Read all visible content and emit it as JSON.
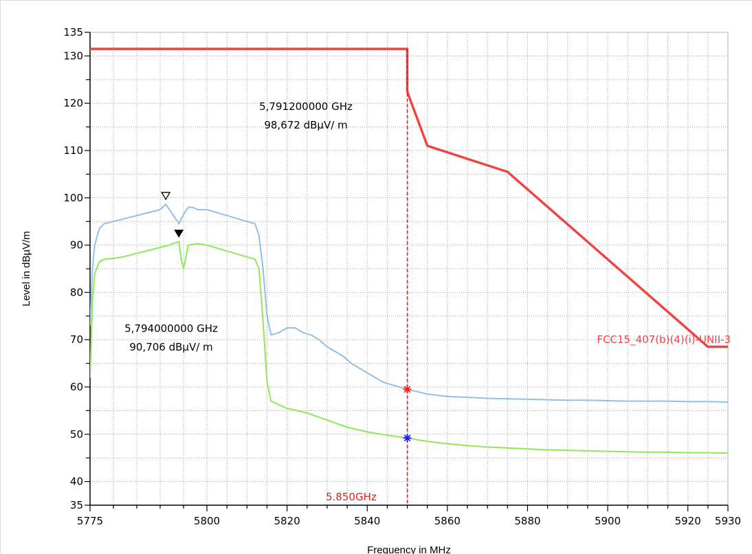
{
  "chart_data": {
    "type": "line",
    "xlabel": "Frequency in MHz",
    "ylabel": "Level in dBµV/m",
    "xlim": [
      5775,
      5930
    ],
    "ylim": [
      35,
      135
    ],
    "x_major_ticks": [
      5775,
      5800,
      5820,
      5840,
      5860,
      5880,
      5900,
      5920,
      5930
    ],
    "x_minor_ticks": [
      5780,
      5785,
      5790,
      5795,
      5805,
      5810,
      5815,
      5825,
      5830,
      5835,
      5845,
      5850,
      5855,
      5865,
      5870,
      5875,
      5885,
      5890,
      5895,
      5905,
      5910,
      5915,
      5925
    ],
    "y_labeled_ticks": [
      35,
      40,
      50,
      60,
      70,
      80,
      90,
      100,
      110,
      120,
      130,
      135
    ],
    "y_grid": [
      40,
      45,
      50,
      55,
      60,
      65,
      70,
      75,
      80,
      85,
      90,
      95,
      100,
      105,
      110,
      115,
      120,
      125,
      130
    ],
    "grid": true,
    "colors": {
      "peak_trace": "#8fc0ea",
      "average_trace": "#8ee85a",
      "limit_line": "#ef4444",
      "marker_line": "#e01b1b",
      "blue_star": "#1a1aff",
      "red_star": "#ff2020",
      "grid": "#a0a0a0"
    },
    "limit_line": {
      "label": "FCC15_407(b)(4)(i)-UNII-3",
      "x": [
        5775,
        5850,
        5850,
        5850.4,
        5855,
        5875,
        5925,
        5930
      ],
      "y": [
        131.5,
        131.5,
        122.5,
        121.5,
        111,
        105.5,
        68.5,
        68.5
      ]
    },
    "marker_line": {
      "x": 5850,
      "label": "5.850GHz"
    },
    "markers": [
      {
        "x": 5791.2,
        "y": 98.672,
        "symbol": "open-triangle",
        "line1": "5,791200000 GHz",
        "line2": "98,672 dBµV/ m"
      },
      {
        "x": 5794.0,
        "y": 90.706,
        "symbol": "filled-triangle",
        "line1": "5,794000000 GHz",
        "line2": "90,706 dBµV/ m"
      }
    ],
    "stars": [
      {
        "x": 5850,
        "y": 59.5,
        "color": "#ff2020"
      },
      {
        "x": 5850,
        "y": 49.2,
        "color": "#1a1aff"
      }
    ],
    "series": [
      {
        "role": "peak",
        "x": [
          5775,
          5775.5,
          5776,
          5777,
          5778,
          5780,
          5782,
          5784,
          5786,
          5788,
          5790,
          5791.2,
          5792,
          5793,
          5794,
          5795,
          5796,
          5797,
          5798,
          5800,
          5802,
          5804,
          5806,
          5808,
          5810,
          5812,
          5813,
          5814,
          5815,
          5816,
          5818,
          5820,
          5822,
          5824,
          5826,
          5828,
          5830,
          5832,
          5834,
          5836,
          5838,
          5840,
          5842,
          5844,
          5846,
          5848,
          5850,
          5855,
          5860,
          5865,
          5870,
          5875,
          5880,
          5885,
          5890,
          5895,
          5900,
          5905,
          5910,
          5915,
          5920,
          5925,
          5930
        ],
        "y": [
          73,
          85,
          90,
          93.5,
          94.5,
          95,
          95.5,
          96,
          96.5,
          97,
          97.5,
          98.67,
          97.5,
          96,
          94.5,
          96.5,
          98,
          98,
          97.5,
          97.5,
          97,
          96.5,
          96,
          95.5,
          95,
          94.5,
          92,
          85,
          75,
          71,
          71.5,
          72.5,
          72.5,
          71.5,
          71,
          70,
          68.5,
          67.5,
          66.5,
          65,
          64,
          63,
          62,
          61,
          60.5,
          60,
          59.5,
          58.5,
          58,
          57.8,
          57.6,
          57.5,
          57.4,
          57.3,
          57.2,
          57.2,
          57.1,
          57,
          57,
          57,
          56.9,
          56.9,
          56.8
        ]
      },
      {
        "role": "average",
        "x": [
          5775,
          5775.5,
          5776,
          5777,
          5778,
          5780,
          5782,
          5784,
          5786,
          5788,
          5790,
          5792,
          5793,
          5794,
          5794.5,
          5795,
          5796,
          5798,
          5800,
          5802,
          5804,
          5806,
          5808,
          5810,
          5812,
          5813,
          5814,
          5815,
          5816,
          5818,
          5820,
          5825,
          5830,
          5835,
          5840,
          5845,
          5850,
          5855,
          5860,
          5865,
          5870,
          5875,
          5880,
          5885,
          5890,
          5895,
          5900,
          5905,
          5910,
          5915,
          5920,
          5925,
          5930
        ],
        "y": [
          62,
          78,
          84,
          86.5,
          87,
          87.2,
          87.5,
          88,
          88.5,
          89,
          89.5,
          90,
          90.4,
          90.706,
          87,
          85,
          90,
          90.3,
          90,
          89.5,
          89,
          88.5,
          88,
          87.5,
          87,
          85,
          74,
          61,
          57,
          56.2,
          55.5,
          54.5,
          53,
          51.5,
          50.5,
          49.8,
          49.2,
          48.5,
          48,
          47.6,
          47.3,
          47.1,
          46.9,
          46.7,
          46.6,
          46.5,
          46.4,
          46.3,
          46.2,
          46.2,
          46.1,
          46.1,
          46
        ]
      }
    ]
  }
}
